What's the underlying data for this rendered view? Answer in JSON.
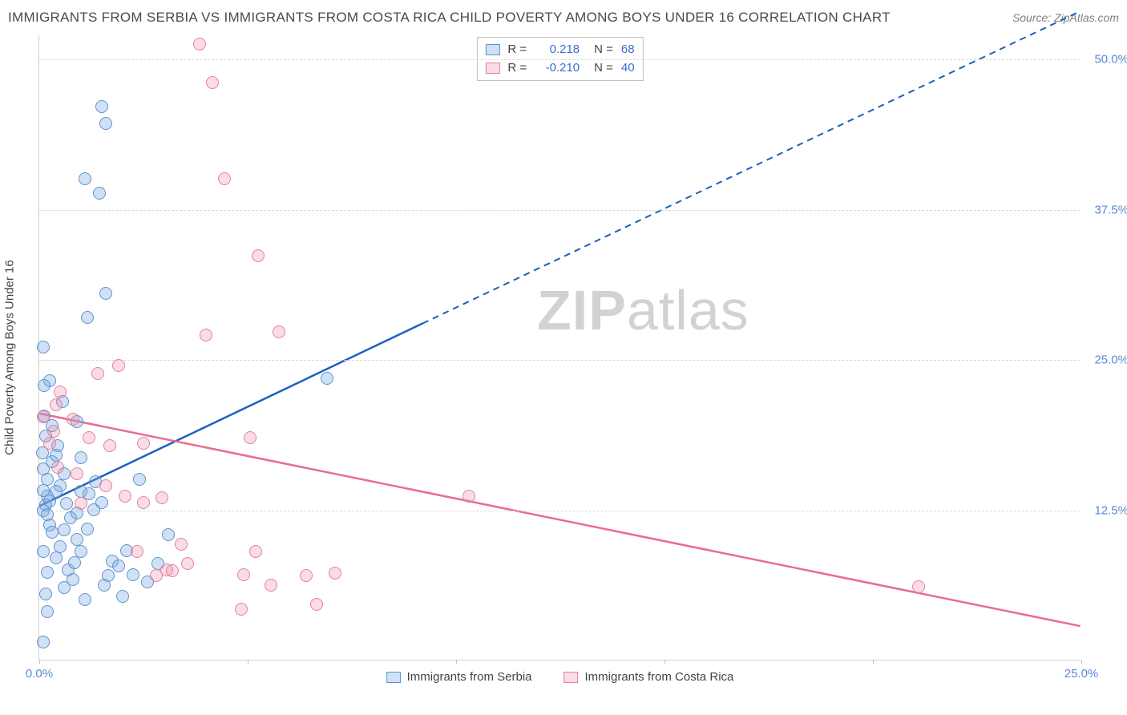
{
  "title": "IMMIGRANTS FROM SERBIA VS IMMIGRANTS FROM COSTA RICA CHILD POVERTY AMONG BOYS UNDER 16 CORRELATION CHART",
  "source": "Source: ZipAtlas.com",
  "y_axis_label": "Child Poverty Among Boys Under 16",
  "watermark_bold": "ZIP",
  "watermark_rest": "atlas",
  "x_range": [
    0,
    25
  ],
  "y_range": [
    0,
    52
  ],
  "x_ticks": [
    0,
    5,
    10,
    15,
    20,
    25
  ],
  "y_gridlines": [
    12.5,
    25,
    37.5,
    50
  ],
  "y_tick_labels": [
    "12.5%",
    "25.0%",
    "37.5%",
    "50.0%"
  ],
  "x_axis_label_left": "0.0%",
  "x_axis_label_right": "25.0%",
  "series": [
    {
      "key": "a",
      "name": "Immigrants from Serbia",
      "fill": "rgba(120,170,225,0.35)",
      "stroke": "#6093ce",
      "line_color": "#1d5fc0",
      "r": "0.218",
      "n": "68",
      "trend": {
        "x1": 0,
        "y1": 12.8,
        "x2_solid": 9.2,
        "y2_solid": 28.0,
        "x2_dash": 25,
        "y2_dash": 54.0
      }
    },
    {
      "key": "b",
      "name": "Immigrants from Costa Rica",
      "fill": "rgba(235,140,170,0.30)",
      "stroke": "#e6809f",
      "line_color": "#ea6c8f",
      "r": "-0.210",
      "n": "40",
      "trend": {
        "x1": 0,
        "y1": 20.5,
        "x2_solid": 25,
        "y2_solid": 2.8,
        "x2_dash": null,
        "y2_dash": null
      }
    }
  ],
  "points_a": [
    [
      0.1,
      1.5
    ],
    [
      0.2,
      4.0
    ],
    [
      0.1,
      9.0
    ],
    [
      0.25,
      11.2
    ],
    [
      0.1,
      12.4
    ],
    [
      0.15,
      12.9
    ],
    [
      0.2,
      13.6
    ],
    [
      0.1,
      14.1
    ],
    [
      0.5,
      14.5
    ],
    [
      0.2,
      15.0
    ],
    [
      0.1,
      15.9
    ],
    [
      0.3,
      16.5
    ],
    [
      0.08,
      17.2
    ],
    [
      0.45,
      17.8
    ],
    [
      0.15,
      18.6
    ],
    [
      0.3,
      19.5
    ],
    [
      0.12,
      20.3
    ],
    [
      0.55,
      21.5
    ],
    [
      0.25,
      23.2
    ],
    [
      0.1,
      26.0
    ],
    [
      0.6,
      6.0
    ],
    [
      0.7,
      7.5
    ],
    [
      0.85,
      8.1
    ],
    [
      1.0,
      9.0
    ],
    [
      0.9,
      10.0
    ],
    [
      1.15,
      10.9
    ],
    [
      0.75,
      11.8
    ],
    [
      1.3,
      12.5
    ],
    [
      1.5,
      13.1
    ],
    [
      1.1,
      5.0
    ],
    [
      1.55,
      6.2
    ],
    [
      1.65,
      7.0
    ],
    [
      1.75,
      8.2
    ],
    [
      1.35,
      14.8
    ],
    [
      1.9,
      7.8
    ],
    [
      2.1,
      9.1
    ],
    [
      1.15,
      28.5
    ],
    [
      1.6,
      30.5
    ],
    [
      1.1,
      40.0
    ],
    [
      1.6,
      44.6
    ],
    [
      1.5,
      46.0
    ],
    [
      2.25,
      7.1
    ],
    [
      2.4,
      15.0
    ],
    [
      2.0,
      5.3
    ],
    [
      2.6,
      6.5
    ],
    [
      2.85,
      8.0
    ],
    [
      3.1,
      10.4
    ],
    [
      0.25,
      13.2
    ],
    [
      0.4,
      14.0
    ],
    [
      0.3,
      10.6
    ],
    [
      0.5,
      9.4
    ],
    [
      0.65,
      13.0
    ],
    [
      0.2,
      12.1
    ],
    [
      0.12,
      22.8
    ],
    [
      1.45,
      38.8
    ],
    [
      0.9,
      19.8
    ],
    [
      1.0,
      16.8
    ],
    [
      1.0,
      14.0
    ],
    [
      0.4,
      8.5
    ],
    [
      0.6,
      10.8
    ],
    [
      0.15,
      5.5
    ],
    [
      0.8,
      6.7
    ],
    [
      0.9,
      12.2
    ],
    [
      0.4,
      17.0
    ],
    [
      0.6,
      15.5
    ],
    [
      1.2,
      13.8
    ],
    [
      6.9,
      23.4
    ],
    [
      0.2,
      7.3
    ]
  ],
  "points_b": [
    [
      0.1,
      20.2
    ],
    [
      0.4,
      21.2
    ],
    [
      0.35,
      19.0
    ],
    [
      0.25,
      18.0
    ],
    [
      0.5,
      22.3
    ],
    [
      0.8,
      20.0
    ],
    [
      1.2,
      18.5
    ],
    [
      1.4,
      23.8
    ],
    [
      1.0,
      13.0
    ],
    [
      1.7,
      17.8
    ],
    [
      2.05,
      13.6
    ],
    [
      2.5,
      13.1
    ],
    [
      1.9,
      24.5
    ],
    [
      2.35,
      9.0
    ],
    [
      2.8,
      7.0
    ],
    [
      3.2,
      7.4
    ],
    [
      3.4,
      9.6
    ],
    [
      2.95,
      13.5
    ],
    [
      3.55,
      8.0
    ],
    [
      4.0,
      27.0
    ],
    [
      3.85,
      51.2
    ],
    [
      4.45,
      40.0
    ],
    [
      4.15,
      48.0
    ],
    [
      4.9,
      7.1
    ],
    [
      5.2,
      9.0
    ],
    [
      5.25,
      33.6
    ],
    [
      5.55,
      6.2
    ],
    [
      5.05,
      18.5
    ],
    [
      6.4,
      7.0
    ],
    [
      6.65,
      4.6
    ],
    [
      7.1,
      7.2
    ],
    [
      5.75,
      27.3
    ],
    [
      4.85,
      4.2
    ],
    [
      3.05,
      7.5
    ],
    [
      1.6,
      14.5
    ],
    [
      0.9,
      15.5
    ],
    [
      0.45,
      16.0
    ],
    [
      10.3,
      13.6
    ],
    [
      21.1,
      6.1
    ],
    [
      2.5,
      18.0
    ]
  ],
  "colors": {
    "title": "#4a4a4a",
    "source": "#808080",
    "axis_label": "#444444",
    "tick_value": "#5989d8",
    "grid": "#d8d8d8",
    "border": "#d0d0d0",
    "watermark": "#c8c8c8",
    "legend_border": "#bfbfbf"
  }
}
